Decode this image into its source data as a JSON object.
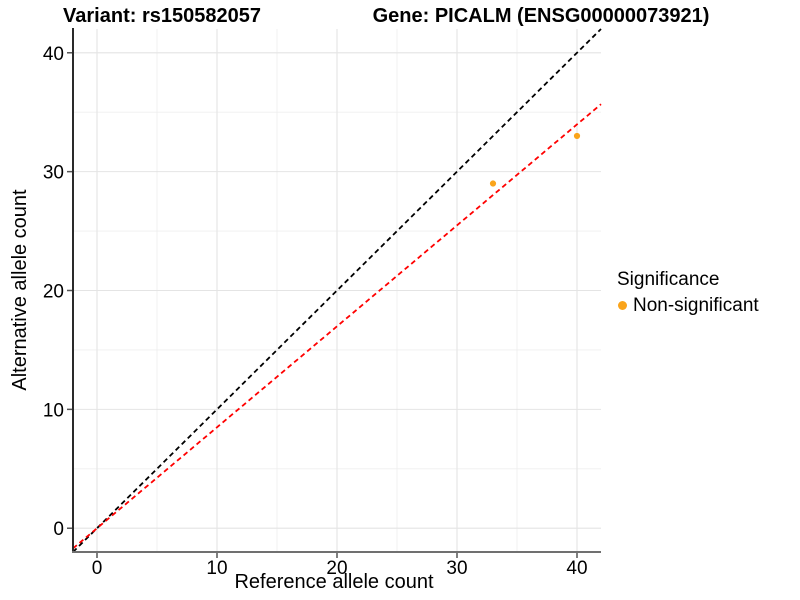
{
  "chart_data": {
    "type": "scatter",
    "title_left": "Variant: rs150582057",
    "title_right": "Gene: PICALM (ENSG00000073921)",
    "xlabel": "Reference allele count",
    "ylabel": "Alternative allele count",
    "xlim": [
      -2,
      42
    ],
    "ylim": [
      -2,
      42
    ],
    "x_ticks": [
      0,
      10,
      20,
      30,
      40
    ],
    "y_ticks": [
      0,
      10,
      20,
      30,
      40
    ],
    "x_minor_ticks": [
      5,
      15,
      25,
      35
    ],
    "y_minor_ticks": [
      5,
      15,
      25,
      35
    ],
    "grid": "major+minor",
    "background": "#ffffff",
    "series": [
      {
        "name": "Non-significant",
        "color": "#FAA41B",
        "points": [
          {
            "x": 33,
            "y": 29
          },
          {
            "x": 40,
            "y": 33
          }
        ]
      }
    ],
    "reference_lines": [
      {
        "name": "identity-line",
        "color": "#000000",
        "style": "dashed",
        "slope": 1.0,
        "intercept": 0
      },
      {
        "name": "fitted-ratio-line",
        "color": "#FF0000",
        "style": "dashed",
        "slope": 0.8493,
        "intercept": 0
      }
    ],
    "legend": {
      "title": "Significance",
      "position": "right",
      "entries": [
        {
          "label": "Non-significant",
          "color": "#FAA41B"
        }
      ]
    },
    "style_colors": {
      "major_grid": "#E4E4E4",
      "minor_grid": "#EFEFEF",
      "y_axis_line": "#2A2A2A",
      "x_axis_line": "#707070",
      "tick_marks": "#555555",
      "tick_label": "#000000"
    }
  }
}
